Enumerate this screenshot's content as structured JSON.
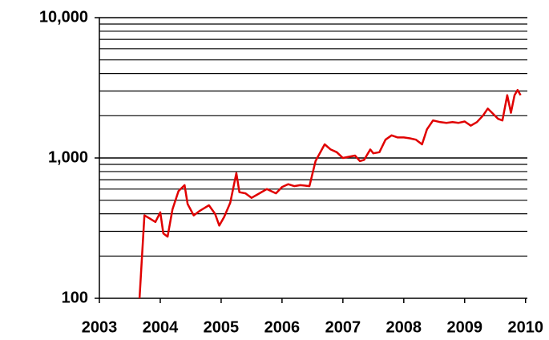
{
  "chart_data": {
    "type": "line",
    "log_scale_y": true,
    "grid": true,
    "color": "#e00000",
    "x": [
      2003.66,
      2003.74,
      2003.83,
      2003.92,
      2004.0,
      2004.05,
      2004.12,
      2004.2,
      2004.3,
      2004.4,
      2004.45,
      2004.55,
      2004.65,
      2004.8,
      2004.9,
      2004.97,
      2005.05,
      2005.15,
      2005.25,
      2005.3,
      2005.4,
      2005.5,
      2005.6,
      2005.75,
      2005.9,
      2006.0,
      2006.1,
      2006.2,
      2006.3,
      2006.45,
      2006.55,
      2006.7,
      2006.8,
      2006.9,
      2007.0,
      2007.1,
      2007.2,
      2007.28,
      2007.35,
      2007.45,
      2007.5,
      2007.6,
      2007.7,
      2007.8,
      2007.9,
      2008.0,
      2008.1,
      2008.2,
      2008.3,
      2008.38,
      2008.48,
      2008.6,
      2008.7,
      2008.8,
      2008.9,
      2009.0,
      2009.1,
      2009.2,
      2009.3,
      2009.38,
      2009.45,
      2009.55,
      2009.62,
      2009.7,
      2009.76,
      2009.82,
      2009.87,
      2009.92
    ],
    "values": [
      100,
      390,
      370,
      350,
      410,
      290,
      275,
      430,
      580,
      640,
      470,
      390,
      420,
      460,
      400,
      330,
      380,
      480,
      780,
      570,
      560,
      520,
      550,
      600,
      560,
      620,
      650,
      630,
      640,
      630,
      950,
      1250,
      1150,
      1100,
      1000,
      1020,
      1040,
      950,
      970,
      1150,
      1080,
      1100,
      1350,
      1450,
      1400,
      1400,
      1380,
      1350,
      1250,
      1600,
      1850,
      1800,
      1780,
      1800,
      1780,
      1820,
      1700,
      1800,
      2000,
      2250,
      2100,
      1900,
      1850,
      2800,
      2100,
      2800,
      3050,
      2800
    ],
    "xlim": [
      2003,
      2010.03
    ],
    "xticks": [
      2003,
      2004,
      2005,
      2006,
      2007,
      2008,
      2009,
      2010
    ],
    "ylim": [
      100,
      10000
    ],
    "yticks": [
      100,
      {
        "value": 1000,
        "label": "1,000"
      },
      {
        "value": 10000,
        "label": "10,000"
      }
    ],
    "minor_grid": [
      200,
      300,
      400,
      500,
      600,
      700,
      800,
      900,
      2000,
      3000,
      4000,
      5000,
      6000,
      7000,
      8000,
      9000
    ]
  }
}
